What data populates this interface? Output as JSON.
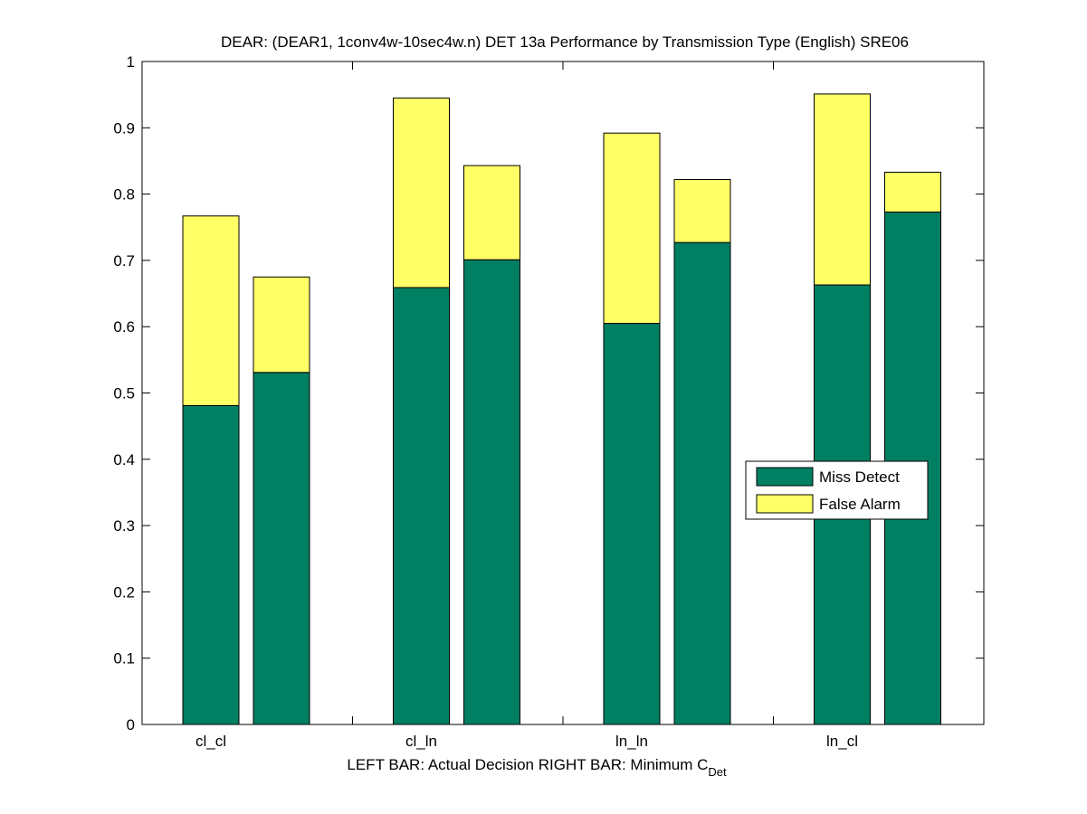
{
  "chart_data": {
    "type": "bar",
    "stacked": true,
    "title": "DEAR: (DEAR1, 1conv4w-10sec4w.n) DET 13a Performance by Transmission Type (English) SRE06",
    "xlabel_main": "LEFT BAR: Actual Decision      RIGHT BAR: Minimum C",
    "xlabel_sub": "Det",
    "categories": [
      "cl_cl",
      "cl_ln",
      "ln_ln",
      "ln_cl"
    ],
    "ylim": [
      0,
      1
    ],
    "yticks": [
      "0",
      "0.1",
      "0.2",
      "0.3",
      "0.4",
      "0.5",
      "0.6",
      "0.7",
      "0.8",
      "0.9",
      "1"
    ],
    "grid": false,
    "legend_position": "right",
    "colors": {
      "miss": "#017F62",
      "false_alarm": "#FFFF66"
    },
    "series": [
      {
        "name": "Miss Detect",
        "actual": [
          0.481,
          0.659,
          0.605,
          0.663
        ],
        "minimum": [
          0.531,
          0.701,
          0.727,
          0.773
        ]
      },
      {
        "name": "False Alarm",
        "actual": [
          0.286,
          0.286,
          0.287,
          0.288
        ],
        "minimum": [
          0.144,
          0.142,
          0.095,
          0.06
        ]
      }
    ]
  }
}
